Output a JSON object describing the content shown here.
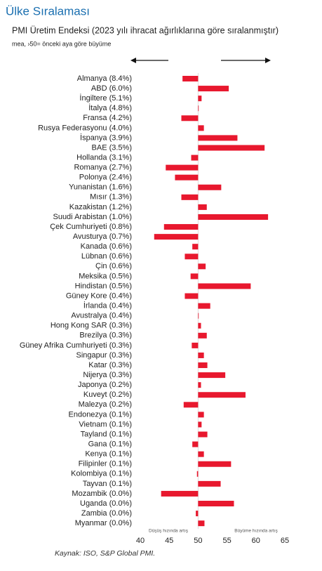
{
  "chart_data": {
    "type": "hbar",
    "title": "Ülke Sıralaması",
    "subtitle": "PMI Üretim Endeksi (2023 yılı ihracat ağırlıklarına göre sıralanmıştır)",
    "note": "mea, ›50= önceki aya göre büyüme",
    "left_annotation": "Düşüş hızında artış",
    "right_annotation": "Büyüme hızında artış",
    "source": "Kaynak: ISO, S&P Global PMI.",
    "categories": [
      "Almanya (8.4%)",
      "ABD (6.0%)",
      "İngiltere (5.1%)",
      "İtalya (4.8%)",
      "Fransa (4.2%)",
      "Rusya Federasyonu (4.0%)",
      "İspanya (3.9%)",
      "BAE (3.5%)",
      "Hollanda (3.1%)",
      "Romanya (2.7%)",
      "Polonya (2.4%)",
      "Yunanistan (1.6%)",
      "Mısır (1.3%)",
      "Kazakistan (1.2%)",
      "Suudi Arabistan (1.0%)",
      "Çek Cumhuriyeti (0.8%)",
      "Avusturya (0.7%)",
      "Kanada (0.6%)",
      "Lübnan (0.6%)",
      "Çin (0.6%)",
      "Meksika (0.5%)",
      "Hindistan (0.5%)",
      "Güney Kore (0.4%)",
      "İrlanda (0.4%)",
      "Avustralya (0.4%)",
      "Hong Kong SAR (0.3%)",
      "Brezilya (0.3%)",
      "Güney Afrika Cumhuriyeti (0.3%)",
      "Singapur (0.3%)",
      "Katar (0.3%)",
      "Nijerya (0.3%)",
      "Japonya (0.2%)",
      "Kuveyt (0.2%)",
      "Malezya (0.2%)",
      "Endonezya (0.1%)",
      "Vietnam (0.1%)",
      "Tayland (0.1%)",
      "Gana (0.1%)",
      "Kenya (0.1%)",
      "Filipinler (0.1%)",
      "Kolombiya (0.1%)",
      "Tayvan (0.1%)",
      "Mozambik (0.0%)",
      "Uganda (0.0%)",
      "Zambia (0.0%)",
      "Myanmar (0.0%)"
    ],
    "values": [
      47.3,
      55.3,
      50.6,
      50.1,
      47.1,
      51.0,
      56.8,
      61.5,
      48.8,
      44.4,
      46.0,
      54.0,
      47.1,
      51.5,
      62.1,
      44.1,
      42.4,
      49.0,
      47.7,
      51.3,
      48.7,
      59.1,
      47.7,
      52.1,
      50.1,
      50.5,
      51.5,
      48.9,
      51.0,
      51.6,
      54.7,
      50.5,
      58.2,
      47.5,
      51.0,
      50.6,
      51.6,
      49.0,
      51.0,
      55.7,
      49.8,
      53.9,
      43.6,
      56.2,
      49.6,
      51.1
    ],
    "base": 50,
    "color": "#e8182e",
    "xlim": [
      40,
      65
    ],
    "xticks": [
      40,
      45,
      50,
      55,
      60,
      65
    ]
  }
}
